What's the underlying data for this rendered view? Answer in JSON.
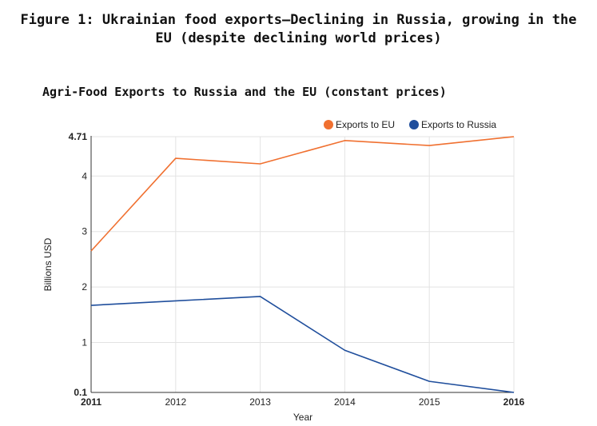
{
  "figure": {
    "title_line1": "Figure 1: Ukrainian food exports—Declining in Russia, growing in the",
    "title_line2": "EU (despite declining world prices)"
  },
  "chart_data": {
    "type": "line",
    "title": "Agri-Food Exports to Russia and the EU (constant prices)",
    "xlabel": "Year",
    "ylabel": "Billions USD",
    "x": [
      2011,
      2012,
      2013,
      2014,
      2015,
      2016
    ],
    "x_tick_labels": [
      "2011",
      "2012",
      "2013",
      "2014",
      "2015",
      "2016"
    ],
    "x_bold_ticks": [
      "2011",
      "2016"
    ],
    "y_tick_labels": [
      "0.1",
      "1",
      "2",
      "3",
      "4",
      "4.71"
    ],
    "y_tick_values": [
      0.1,
      1,
      2,
      3,
      4,
      4.71
    ],
    "y_bold_ticks": [
      "0.1",
      "4.71"
    ],
    "ylim": [
      0.1,
      4.71
    ],
    "grid": true,
    "legend_position": "top-right",
    "series": [
      {
        "name": "Exports to EU",
        "color": "#f07030",
        "values": [
          2.65,
          4.32,
          4.22,
          4.64,
          4.55,
          4.71
        ]
      },
      {
        "name": "Exports to Russia",
        "color": "#1f4e9c",
        "values": [
          1.67,
          1.75,
          1.83,
          0.86,
          0.3,
          0.1
        ]
      }
    ]
  }
}
